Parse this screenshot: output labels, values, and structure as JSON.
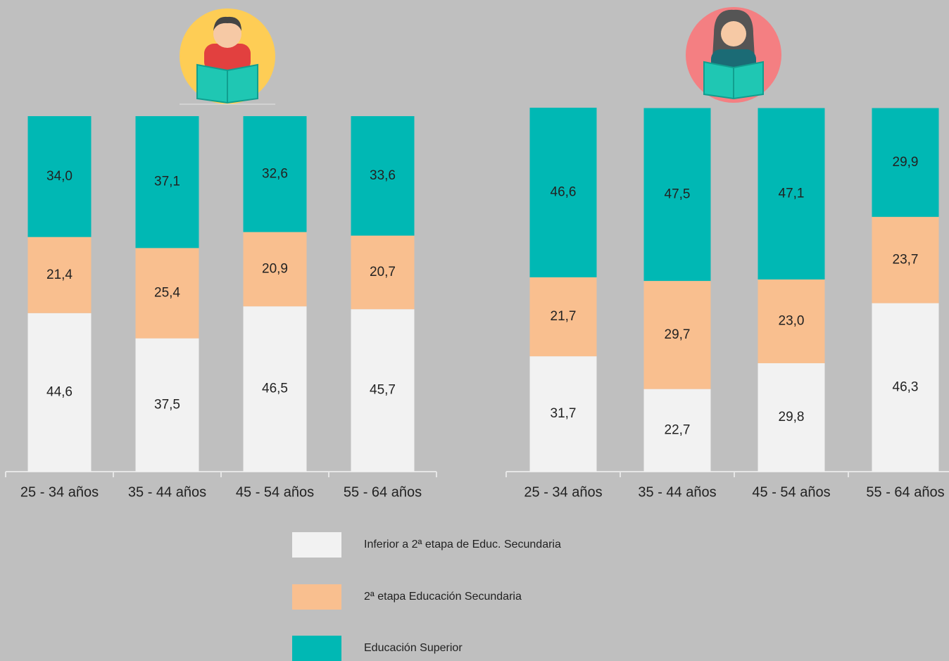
{
  "chart_data": [
    {
      "type": "stacked_bar",
      "categories": [
        "25 - 34 años",
        "35 - 44 años",
        "45 - 54 años",
        "55 - 64 años"
      ],
      "ylim": [
        0,
        100
      ],
      "series": [
        {
          "name": "Inferior a 2ª etapa de Educ. Secundaria",
          "color": "#f2f2f2",
          "values": [
            44.6,
            37.5,
            46.5,
            45.7
          ],
          "value_labels": [
            "44,6",
            "37,5",
            "46,5",
            "45,7"
          ]
        },
        {
          "name": "2ª etapa Educación Secundaria",
          "color": "#f9bf8f",
          "values": [
            21.4,
            25.4,
            20.9,
            20.7
          ],
          "value_labels": [
            "21,4",
            "25,4",
            "20,9",
            "20,7"
          ]
        },
        {
          "name": "Educación Superior",
          "color": "#00b8b4",
          "values": [
            34.0,
            37.1,
            32.6,
            33.6
          ],
          "value_labels": [
            "34,0",
            "37,1",
            "32,6",
            "33,6"
          ]
        }
      ]
    },
    {
      "type": "stacked_bar",
      "categories": [
        "25 - 34 años",
        "35 - 44 años",
        "45 - 54 años",
        "55 - 64 años"
      ],
      "ylim": [
        0,
        100
      ],
      "series": [
        {
          "color": "#f2f2f2",
          "values": [
            31.7,
            22.7,
            29.8,
            46.3
          ],
          "value_labels": [
            "31,7",
            "22,7",
            "29,8",
            "46,3"
          ]
        },
        {
          "color": "#f9bf8f",
          "values": [
            21.7,
            29.7,
            23.0,
            23.7
          ],
          "value_labels": [
            "21,7",
            "29,7",
            "23,0",
            "23,7"
          ]
        },
        {
          "color": "#00b8b4",
          "values": [
            46.6,
            47.5,
            47.1,
            29.9
          ],
          "value_labels": [
            "46,6",
            "47,5",
            "47,1",
            "29,9"
          ]
        }
      ]
    }
  ]
}
